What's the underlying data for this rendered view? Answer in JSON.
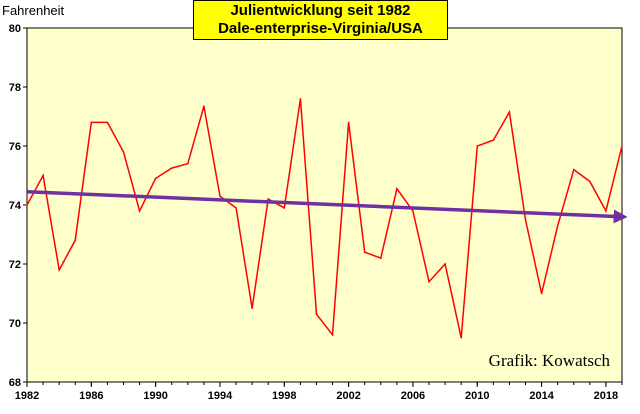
{
  "chart_data": {
    "type": "line",
    "title": "Julientwicklung seit 1982",
    "subtitle": "Dale-enterprise-Virginia/USA",
    "ylabel": "Fahrenheit",
    "xlabel": "",
    "credit": "Grafik: Kowatsch",
    "ylim": [
      68,
      80
    ],
    "xlim": [
      1982,
      2019
    ],
    "y_ticks": [
      68,
      70,
      72,
      74,
      76,
      78,
      80
    ],
    "x_ticks": [
      1982,
      1986,
      1990,
      1994,
      1998,
      2002,
      2006,
      2010,
      2014,
      2018
    ],
    "grid": false,
    "plot_background": "#ffffcc",
    "series": [
      {
        "type": "line",
        "color": "#ff0000",
        "x": [
          1982,
          1983,
          1984,
          1985,
          1986,
          1987,
          1988,
          1989,
          1990,
          1991,
          1992,
          1993,
          1994,
          1995,
          1996,
          1997,
          1998,
          1999,
          2000,
          2001,
          2002,
          2003,
          2004,
          2005,
          2006,
          2007,
          2008,
          2009,
          2010,
          2011,
          2012,
          2013,
          2014,
          2015,
          2016,
          2017,
          2018,
          2019
        ],
        "values": [
          74.0,
          75.0,
          71.8,
          72.8,
          76.8,
          76.8,
          75.8,
          73.8,
          74.9,
          75.25,
          75.4,
          77.35,
          74.3,
          73.9,
          70.5,
          74.2,
          73.9,
          77.6,
          70.3,
          69.6,
          76.8,
          72.4,
          72.2,
          74.55,
          73.8,
          71.4,
          72.0,
          69.5,
          76.0,
          76.2,
          77.15,
          73.5,
          71.0,
          73.3,
          75.2,
          74.8,
          73.8,
          76.0
        ]
      },
      {
        "type": "trend",
        "color": "#7030a0",
        "x": [
          1982,
          2019
        ],
        "values": [
          74.45,
          73.6
        ]
      }
    ]
  }
}
